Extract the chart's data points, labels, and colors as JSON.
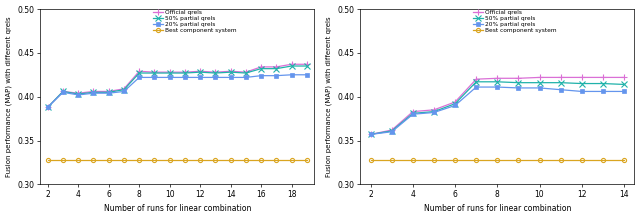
{
  "left": {
    "x": [
      2,
      3,
      4,
      5,
      6,
      7,
      8,
      9,
      10,
      11,
      12,
      13,
      14,
      15,
      16,
      17,
      18,
      19
    ],
    "official": [
      0.388,
      0.406,
      0.404,
      0.406,
      0.406,
      0.409,
      0.429,
      0.428,
      0.428,
      0.428,
      0.429,
      0.428,
      0.429,
      0.428,
      0.434,
      0.434,
      0.437,
      0.437
    ],
    "p50": [
      0.388,
      0.406,
      0.403,
      0.405,
      0.405,
      0.408,
      0.427,
      0.427,
      0.427,
      0.427,
      0.428,
      0.427,
      0.428,
      0.427,
      0.432,
      0.432,
      0.435,
      0.435
    ],
    "p20": [
      0.388,
      0.405,
      0.402,
      0.404,
      0.404,
      0.406,
      0.422,
      0.422,
      0.422,
      0.422,
      0.422,
      0.422,
      0.422,
      0.422,
      0.424,
      0.424,
      0.425,
      0.425
    ],
    "best": [
      0.328,
      0.328,
      0.328,
      0.328,
      0.328,
      0.328,
      0.328,
      0.328,
      0.328,
      0.328,
      0.328,
      0.328,
      0.328,
      0.328,
      0.328,
      0.328,
      0.328,
      0.328
    ],
    "ylim": [
      0.3,
      0.5
    ],
    "yticks": [
      0.3,
      0.35,
      0.4,
      0.45,
      0.5
    ],
    "xticks": [
      2,
      4,
      6,
      8,
      10,
      12,
      14,
      16,
      18
    ]
  },
  "right": {
    "x": [
      2,
      3,
      4,
      5,
      6,
      7,
      8,
      9,
      10,
      11,
      12,
      13,
      14
    ],
    "official": [
      0.357,
      0.362,
      0.383,
      0.385,
      0.394,
      0.42,
      0.421,
      0.421,
      0.422,
      0.422,
      0.422,
      0.422,
      0.422
    ],
    "p50": [
      0.357,
      0.361,
      0.381,
      0.383,
      0.392,
      0.417,
      0.417,
      0.416,
      0.416,
      0.416,
      0.415,
      0.415,
      0.414
    ],
    "p20": [
      0.357,
      0.36,
      0.38,
      0.382,
      0.39,
      0.411,
      0.411,
      0.41,
      0.41,
      0.408,
      0.406,
      0.406,
      0.406
    ],
    "best": [
      0.328,
      0.328,
      0.328,
      0.328,
      0.328,
      0.328,
      0.328,
      0.328,
      0.328,
      0.328,
      0.328,
      0.328,
      0.328
    ],
    "ylim": [
      0.3,
      0.5
    ],
    "yticks": [
      0.3,
      0.35,
      0.4,
      0.45,
      0.5
    ],
    "xticks": [
      2,
      4,
      6,
      8,
      10,
      12,
      14
    ]
  },
  "colors": {
    "official": "#da70d6",
    "p50": "#20b2aa",
    "p20": "#6495ed",
    "best": "#daa520"
  },
  "legend_labels": [
    "Official qrels",
    "50% partial qrels",
    "20% partial qrels",
    "Best component system"
  ],
  "xlabel": "Number of runs for linear combination",
  "ylabel": "Fusion performance (MAP) with different qrels"
}
